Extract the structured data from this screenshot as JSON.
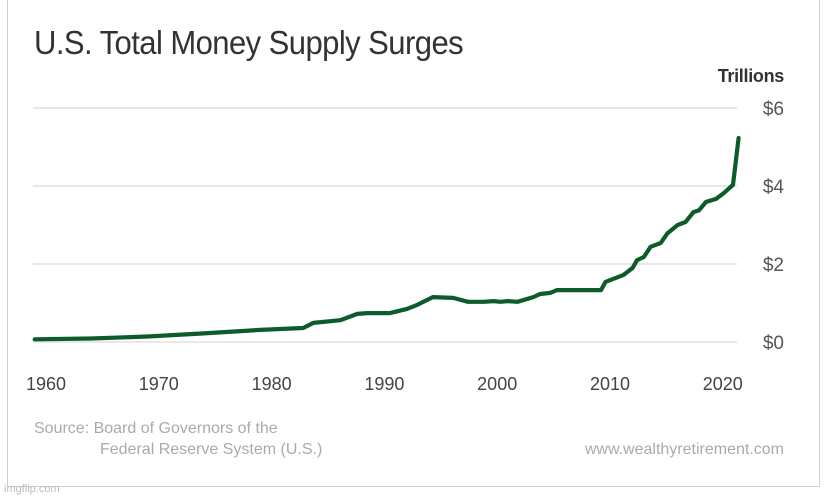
{
  "chart_data": {
    "type": "line",
    "title": "U.S. Total Money Supply Surges",
    "xlabel": "",
    "ylabel": "Trillions",
    "xlim": [
      1958.7,
      2021.4
    ],
    "ylim": [
      0,
      6
    ],
    "grid": true,
    "x_ticks": [
      1960,
      1970,
      1980,
      1990,
      2000,
      2010,
      2020
    ],
    "x_tick_labels": [
      "1960",
      "1970",
      "1980",
      "1990",
      "2000",
      "2010",
      "2020"
    ],
    "y_ticks": [
      0,
      2,
      4,
      6
    ],
    "y_tick_labels": [
      "$0",
      "$2",
      "$4",
      "$6"
    ],
    "series": [
      {
        "name": "U.S. Total Money Supply",
        "color": "#0d5a2a",
        "x": [
          1959,
          1964,
          1969,
          1974,
          1979,
          1982.8,
          1983.7,
          1986.1,
          1987.6,
          1988.5,
          1990.5,
          1992,
          1992.9,
          1994.3,
          1996.1,
          1997.4,
          1998.8,
          1999.7,
          2000.3,
          2000.9,
          2001.8,
          2003.2,
          2003.8,
          2004.7,
          2005.3,
          2009.2,
          2009.6,
          2011.2,
          2012,
          2012.4,
          2013,
          2013.6,
          2014.5,
          2015.1,
          2016,
          2016.7,
          2017.4,
          2017.9,
          2018.5,
          2019.4,
          2020.1,
          2020.9,
          2021.4
        ],
        "values": [
          0.07,
          0.09,
          0.14,
          0.22,
          0.31,
          0.36,
          0.49,
          0.56,
          0.72,
          0.74,
          0.74,
          0.85,
          0.95,
          1.15,
          1.13,
          1.03,
          1.03,
          1.05,
          1.03,
          1.05,
          1.03,
          1.15,
          1.23,
          1.26,
          1.33,
          1.33,
          1.54,
          1.72,
          1.9,
          2.1,
          2.18,
          2.44,
          2.54,
          2.79,
          3.0,
          3.08,
          3.33,
          3.38,
          3.59,
          3.67,
          3.82,
          4.03,
          5.23
        ]
      }
    ]
  },
  "header": {
    "title": "U.S. Total Money Supply Surges",
    "units": "Trillions"
  },
  "footer": {
    "source_line1": "Source: Board of Governors of the",
    "source_line2": "Federal Reserve System (U.S.)",
    "website": "www.wealthyretirement.com"
  },
  "watermark": "imgflip.com",
  "colors": {
    "line": "#0d5a2a",
    "grid": "#d9d9d9",
    "title": "#333333",
    "muted": "#aaaaaa"
  }
}
